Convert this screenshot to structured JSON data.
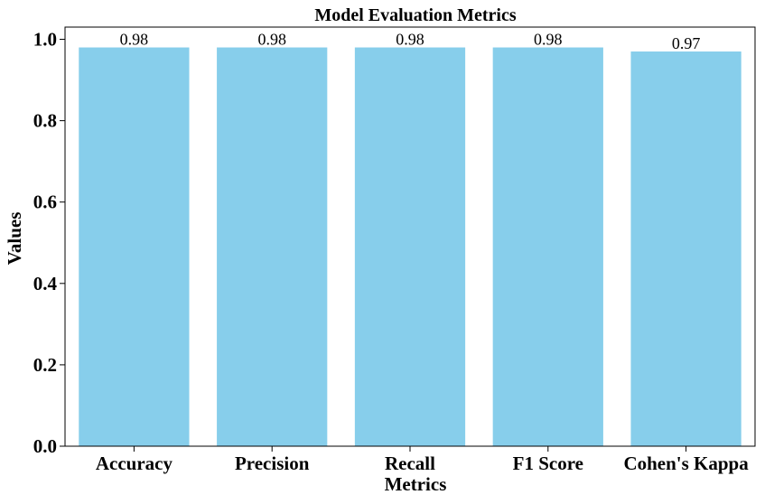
{
  "chart_data": {
    "type": "bar",
    "title": "Model Evaluation Metrics",
    "xlabel": "Metrics",
    "ylabel": "Values",
    "categories": [
      "Accuracy",
      "Precision",
      "Recall",
      "F1 Score",
      "Cohen's Kappa"
    ],
    "values": [
      0.98,
      0.98,
      0.98,
      0.98,
      0.97
    ],
    "value_labels": [
      "0.98",
      "0.98",
      "0.98",
      "0.98",
      "0.97"
    ],
    "ylim": [
      0,
      1.03
    ],
    "yticks": [
      0.0,
      0.2,
      0.4,
      0.6,
      0.8,
      1.0
    ],
    "ytick_labels": [
      "0.0",
      "0.2",
      "0.4",
      "0.6",
      "0.8",
      "1.0"
    ],
    "grid": false,
    "bar_color": "#87ceeb"
  }
}
